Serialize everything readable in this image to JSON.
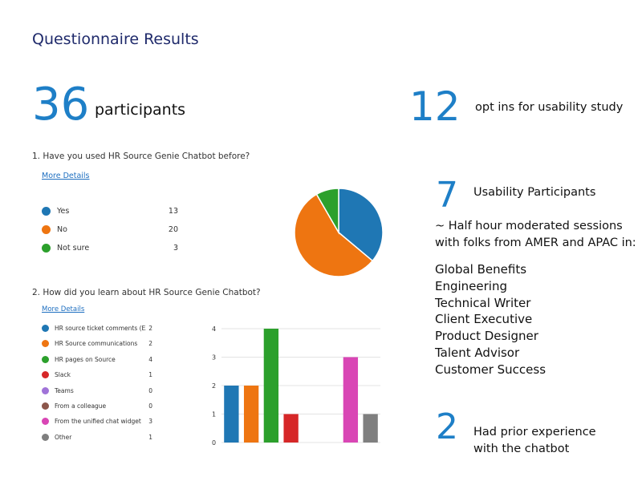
{
  "page_title": "Questionnaire Results",
  "participants": {
    "number": "36",
    "label": "participants"
  },
  "opt_ins": {
    "number": "12",
    "label": "opt ins for usability study"
  },
  "usability": {
    "number": "7",
    "label": "Usability Participants",
    "sessions_line1": "~ Half hour moderated sessions",
    "sessions_line2": "with folks from AMER and APAC in:",
    "roles": [
      "Global Benefits",
      "Engineering",
      "Technical Writer",
      "Client Executive",
      "Product Designer",
      "Talent Advisor",
      "Customer Success"
    ]
  },
  "prior": {
    "number": "2",
    "line1": "Had prior experience",
    "line2": "with the chatbot"
  },
  "q1": {
    "title": "1.  Have you used HR Source Genie Chatbot before?",
    "more_details": "More Details"
  },
  "q2": {
    "title": "2.  How did you learn about HR Source Genie Chatbot?",
    "more_details": "More Details"
  },
  "chart_data": [
    {
      "type": "pie",
      "categories": [
        "Yes",
        "No",
        "Not sure"
      ],
      "values": [
        13,
        20,
        3
      ],
      "colors": [
        "#1f77b4",
        "#ee7511",
        "#2ca02c"
      ]
    },
    {
      "type": "bar",
      "categories": [
        "HR source ticket comments (EX: ...",
        "HR Source communications",
        "HR pages on Source",
        "Slack",
        "Teams",
        "From a colleague",
        "From the unified chat widget",
        "Other"
      ],
      "values": [
        2,
        2,
        4,
        1,
        0,
        0,
        3,
        1
      ],
      "colors": [
        "#1f77b4",
        "#ee7511",
        "#2ca02c",
        "#d62728",
        "#a073d8",
        "#8c564b",
        "#d946b5",
        "#7f7f7f"
      ],
      "ylim": [
        0,
        4
      ],
      "yticks": [
        "0",
        "1",
        "2",
        "3",
        "4"
      ]
    }
  ]
}
